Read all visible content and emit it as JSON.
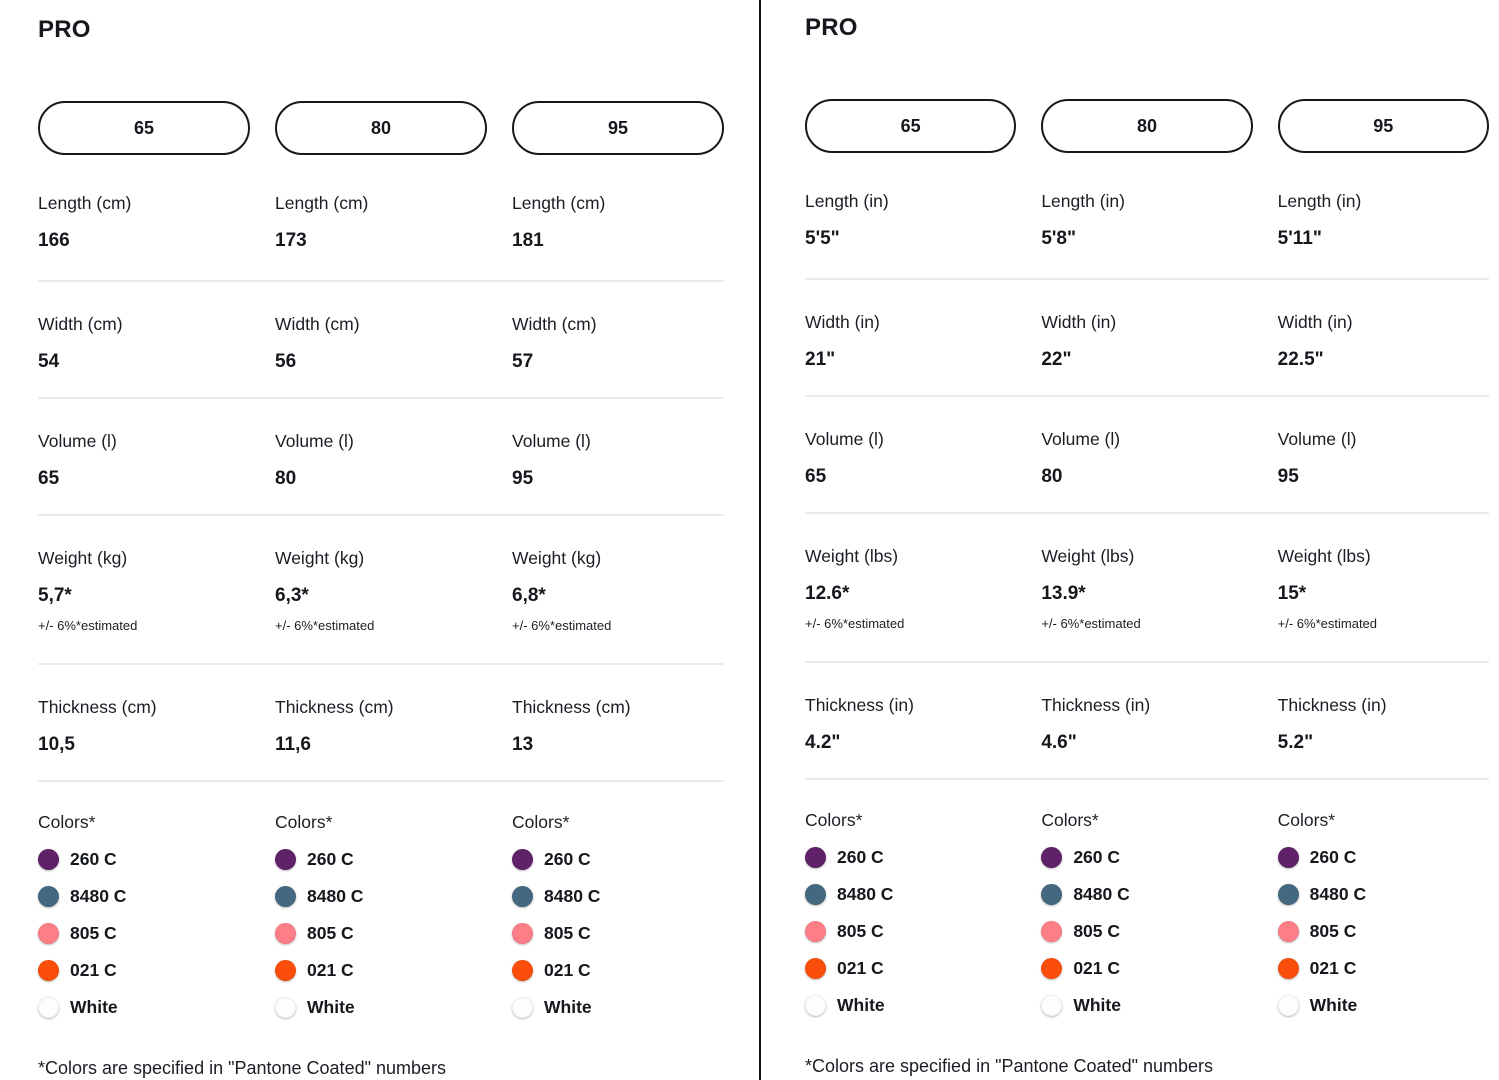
{
  "panels": [
    {
      "title": "PRO",
      "sizes": [
        "65",
        "80",
        "95"
      ],
      "rows": [
        {
          "label": "Length (cm)",
          "values": [
            "166",
            "173",
            "181"
          ]
        },
        {
          "label": "Width (cm)",
          "values": [
            "54",
            "56",
            "57"
          ]
        },
        {
          "label": "Volume (l)",
          "values": [
            "65",
            "80",
            "95"
          ]
        },
        {
          "label": "Weight (kg)",
          "values": [
            "5,7*",
            "6,3*",
            "6,8*"
          ],
          "note": "+/- 6%*estimated"
        },
        {
          "label": "Thickness (cm)",
          "values": [
            "10,5",
            "11,6",
            "13"
          ]
        }
      ],
      "colors_label": "Colors*",
      "colors": [
        {
          "name": "260 C",
          "hex": "#5f2167"
        },
        {
          "name": "8480 C",
          "hex": "#44687f"
        },
        {
          "name": "805 C",
          "hex": "#fc7e87"
        },
        {
          "name": "021 C",
          "hex": "#fb4e0a"
        },
        {
          "name": "White",
          "hex": "#fdfdfd"
        }
      ],
      "footnote": "*Colors are specified in \"Pantone Coated\" numbers"
    },
    {
      "title": "PRO",
      "sizes": [
        "65",
        "80",
        "95"
      ],
      "rows": [
        {
          "label": "Length (in)",
          "values": [
            "5'5\"",
            "5'8\"",
            "5'11\""
          ]
        },
        {
          "label": "Width (in)",
          "values": [
            "21\"",
            "22\"",
            "22.5\""
          ]
        },
        {
          "label": "Volume (l)",
          "values": [
            "65",
            "80",
            "95"
          ]
        },
        {
          "label": "Weight (lbs)",
          "values": [
            "12.6*",
            "13.9*",
            "15*"
          ],
          "note": "+/- 6%*estimated"
        },
        {
          "label": "Thickness (in)",
          "values": [
            "4.2\"",
            "4.6\"",
            "5.2\""
          ]
        }
      ],
      "colors_label": "Colors*",
      "colors": [
        {
          "name": "260 C",
          "hex": "#5f2167"
        },
        {
          "name": "8480 C",
          "hex": "#44687f"
        },
        {
          "name": "805 C",
          "hex": "#fc7e87"
        },
        {
          "name": "021 C",
          "hex": "#fb4e0a"
        },
        {
          "name": "White",
          "hex": "#fdfdfd"
        }
      ],
      "footnote": "*Colors are specified in \"Pantone Coated\" numbers"
    }
  ]
}
